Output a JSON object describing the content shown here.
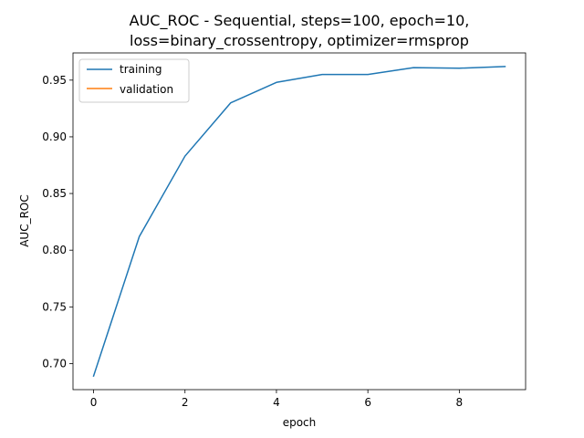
{
  "chart_data": {
    "type": "line",
    "title_lines": [
      "AUC_ROC - Sequential, steps=100, epoch=10,",
      "loss=binary_crossentropy, optimizer=rmsprop"
    ],
    "xlabel": "epoch",
    "ylabel": "AUC_ROC",
    "xlim": [
      -0.45,
      9.45
    ],
    "ylim": [
      0.677,
      0.974
    ],
    "xticks": [
      0,
      2,
      4,
      6,
      8
    ],
    "xtick_labels": [
      "0",
      "2",
      "4",
      "6",
      "8"
    ],
    "yticks": [
      0.7,
      0.75,
      0.8,
      0.85,
      0.9,
      0.95
    ],
    "ytick_labels": [
      "0.70",
      "0.75",
      "0.80",
      "0.85",
      "0.90",
      "0.95"
    ],
    "grid": false,
    "legend_position": "upper-left",
    "series": [
      {
        "name": "training",
        "color": "#1f77b4",
        "x": [
          0,
          1,
          2,
          3,
          4,
          5,
          6,
          7,
          8,
          9
        ],
        "values": [
          0.689,
          0.812,
          0.883,
          0.93,
          0.948,
          0.955,
          0.955,
          0.961,
          0.9605,
          0.962
        ]
      },
      {
        "name": "validation",
        "color": "#ff7f0e",
        "x": [],
        "values": []
      }
    ]
  }
}
